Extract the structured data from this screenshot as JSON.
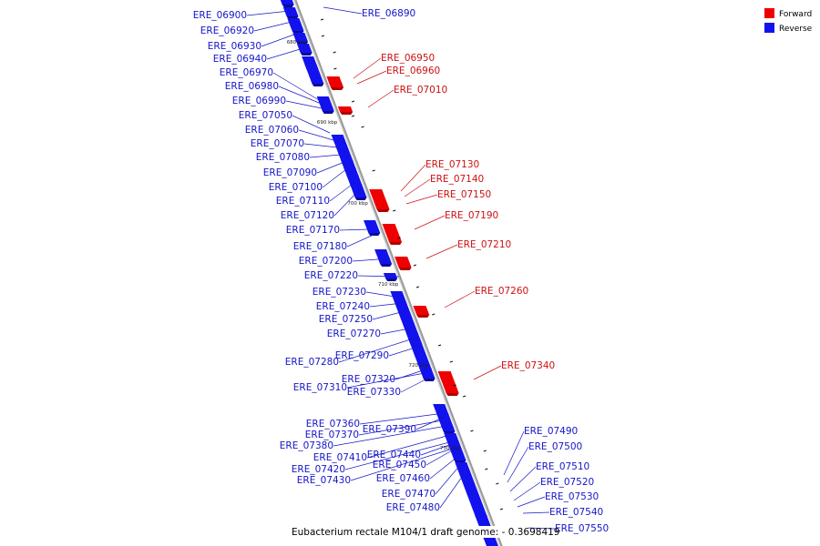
{
  "colors": {
    "forward": "#ee0000",
    "forward_dark": "#b00000",
    "reverse": "#1212ee",
    "reverse_dark": "#0a0a9a",
    "backbone": "#9a9a9a",
    "label_forward": "#cc1111",
    "label_reverse": "#1515c8"
  },
  "legend": [
    {
      "label": "Forward",
      "strand": "forward"
    },
    {
      "label": "Reverse",
      "strand": "reverse"
    }
  ],
  "genome_label": "Eubacterium rectale M104/1 draft genome: - 0.3698419",
  "kbp_ticks": [
    "680 kbp",
    "690 kbp",
    "700 kbp",
    "710 kbp",
    "720 kbp",
    "730 kbp"
  ],
  "reverse_genes_left": [
    "ERE_06900",
    "ERE_06920",
    "ERE_06930",
    "ERE_06940",
    "ERE_06970",
    "ERE_06980",
    "ERE_06990",
    "ERE_07050",
    "ERE_07060",
    "ERE_07070",
    "ERE_07080",
    "ERE_07090",
    "ERE_07100",
    "ERE_07110",
    "ERE_07120",
    "ERE_07170",
    "ERE_07180",
    "ERE_07200",
    "ERE_07220",
    "ERE_07230",
    "ERE_07240",
    "ERE_07250",
    "ERE_07270",
    "ERE_07280",
    "ERE_07290",
    "ERE_07310",
    "ERE_07320",
    "ERE_07330",
    "ERE_07360",
    "ERE_07370",
    "ERE_07380",
    "ERE_07390",
    "ERE_07410",
    "ERE_07420",
    "ERE_07430",
    "ERE_07440",
    "ERE_07450",
    "ERE_07460",
    "ERE_07470",
    "ERE_07480"
  ],
  "reverse_genes_right": [
    "ERE_06890",
    "ERE_07490",
    "ERE_07500",
    "ERE_07510",
    "ERE_07520",
    "ERE_07530",
    "ERE_07540",
    "ERE_07550"
  ],
  "forward_genes": [
    "ERE_06950",
    "ERE_06960",
    "ERE_07010",
    "ERE_07130",
    "ERE_07140",
    "ERE_07150",
    "ERE_07190",
    "ERE_07210",
    "ERE_07260",
    "ERE_07340"
  ]
}
